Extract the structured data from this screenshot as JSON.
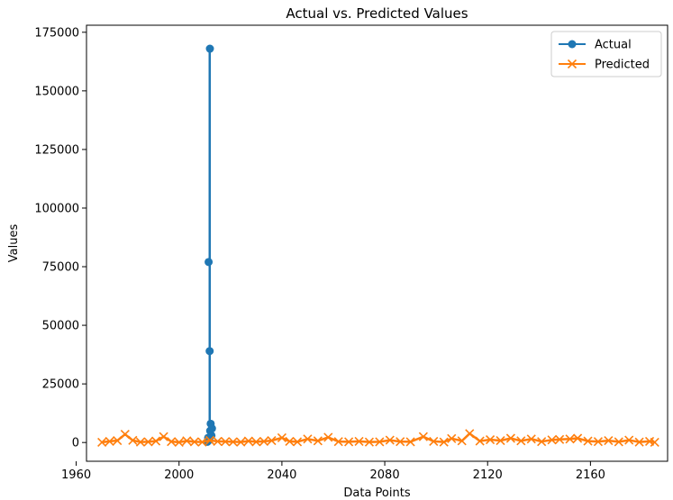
{
  "chart_data": {
    "type": "line",
    "title": "Actual vs. Predicted Values",
    "xlabel": "Data Points",
    "ylabel": "Values",
    "xlim": [
      1964,
      2190
    ],
    "ylim": [
      -8000,
      178000
    ],
    "xticks": [
      1960,
      2000,
      2040,
      2080,
      2120,
      2160
    ],
    "yticks": [
      0,
      25000,
      50000,
      75000,
      100000,
      125000,
      150000,
      175000
    ],
    "legend": {
      "placement": "top-right"
    },
    "series": [
      {
        "name": "Actual",
        "color": "#1f77b4",
        "marker": "circle",
        "x": [
          2011,
          2011.3,
          2011.5,
          2011.7,
          2011.9,
          2012.1,
          2012.3,
          2012.6,
          2012.8,
          2012
        ],
        "y": [
          300,
          2000,
          77000,
          1000,
          39000,
          5000,
          8000,
          3000,
          6000,
          168000
        ]
      },
      {
        "name": "Predicted",
        "color": "#ff7f0e",
        "marker": "x",
        "x": [
          1970,
          1973,
          1976,
          1979,
          1982,
          1985,
          1988,
          1991,
          1994,
          1997,
          2000,
          2003,
          2006,
          2009,
          2012,
          2015,
          2018,
          2021,
          2024,
          2027,
          2030,
          2033,
          2036,
          2040,
          2043,
          2046,
          2050,
          2054,
          2058,
          2062,
          2066,
          2070,
          2074,
          2078,
          2082,
          2086,
          2090,
          2095,
          2099,
          2103,
          2106,
          2110,
          2113,
          2117,
          2121,
          2125,
          2129,
          2133,
          2137,
          2141,
          2145,
          2148,
          2152,
          2155,
          2159,
          2163,
          2167,
          2171,
          2175,
          2179,
          2183,
          2185
        ],
        "y": [
          100,
          500,
          800,
          3500,
          900,
          200,
          300,
          600,
          2500,
          400,
          100,
          700,
          300,
          200,
          900,
          500,
          400,
          300,
          200,
          600,
          300,
          500,
          800,
          2000,
          500,
          300,
          1500,
          700,
          2200,
          400,
          300,
          500,
          200,
          300,
          1000,
          400,
          300,
          2500,
          500,
          200,
          1700,
          700,
          3800,
          600,
          1200,
          800,
          1800,
          700,
          1500,
          400,
          1100,
          1300,
          1500,
          1800,
          600,
          400,
          800,
          300,
          1000,
          200,
          500,
          100
        ]
      }
    ]
  }
}
